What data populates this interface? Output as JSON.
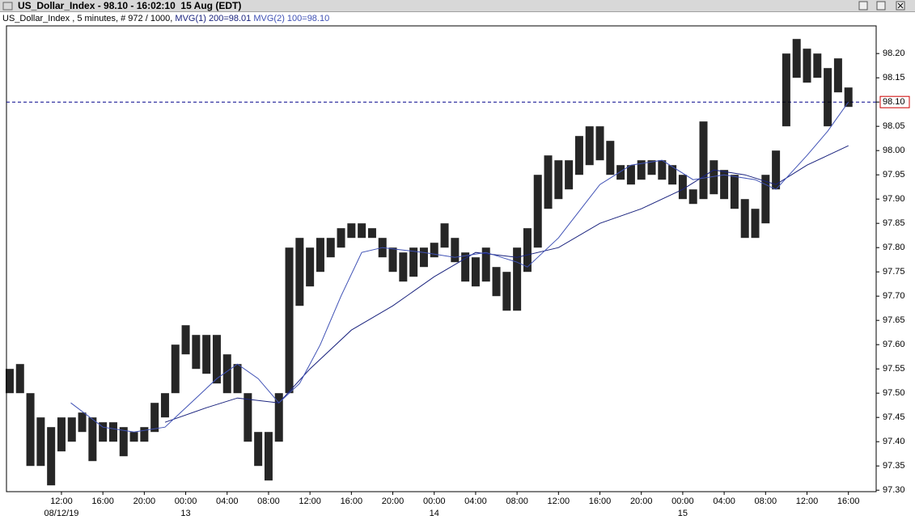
{
  "window_title": "US_Dollar_Index - 98.10 - 16:02:10  15 Aug (EDT)",
  "chart_data": {
    "type": "ohlc",
    "header": "US_Dollar_Index , 5 minutes, # 972 / 1000,",
    "xlim": [
      6.69,
      90.68
    ],
    "ylim": [
      97.297,
      98.257
    ],
    "xticks": [
      {
        "value": 12,
        "label": "12:00"
      },
      {
        "value": 16,
        "label": "16:00"
      },
      {
        "value": 20,
        "label": "20:00"
      },
      {
        "value": 24,
        "label": "00:00"
      },
      {
        "value": 28,
        "label": "04:00"
      },
      {
        "value": 32,
        "label": "08:00"
      },
      {
        "value": 36,
        "label": "12:00"
      },
      {
        "value": 40,
        "label": "16:00"
      },
      {
        "value": 44,
        "label": "20:00"
      },
      {
        "value": 48,
        "label": "00:00"
      },
      {
        "value": 52,
        "label": "04:00"
      },
      {
        "value": 56,
        "label": "08:00"
      },
      {
        "value": 60,
        "label": "12:00"
      },
      {
        "value": 64,
        "label": "16:00"
      },
      {
        "value": 68,
        "label": "20:00"
      },
      {
        "value": 72,
        "label": "00:00"
      },
      {
        "value": 76,
        "label": "04:00"
      },
      {
        "value": 80,
        "label": "08:00"
      },
      {
        "value": 84,
        "label": "12:00"
      },
      {
        "value": 88,
        "label": "16:00"
      }
    ],
    "date_labels": [
      {
        "value": 12,
        "label": "08/12/19"
      },
      {
        "value": 24,
        "label": "13"
      },
      {
        "value": 48,
        "label": "14"
      },
      {
        "value": 72,
        "label": "15"
      }
    ],
    "yticks": [
      {
        "value": 97.3,
        "label": "97.30"
      },
      {
        "value": 97.35,
        "label": "97.35"
      },
      {
        "value": 97.4,
        "label": "97.40"
      },
      {
        "value": 97.45,
        "label": "97.45"
      },
      {
        "value": 97.5,
        "label": "97.50"
      },
      {
        "value": 97.55,
        "label": "97.55"
      },
      {
        "value": 97.6,
        "label": "97.60"
      },
      {
        "value": 97.65,
        "label": "97.65"
      },
      {
        "value": 97.7,
        "label": "97.70"
      },
      {
        "value": 97.75,
        "label": "97.75"
      },
      {
        "value": 97.8,
        "label": "97.80"
      },
      {
        "value": 97.85,
        "label": "97.85"
      },
      {
        "value": 97.9,
        "label": "97.90"
      },
      {
        "value": 97.95,
        "label": "97.95"
      },
      {
        "value": 98,
        "label": "98.00"
      },
      {
        "value": 98.05,
        "label": "98.05"
      },
      {
        "value": 98.1,
        "label": "98.10"
      },
      {
        "value": 98.15,
        "label": "98.15"
      },
      {
        "value": 98.2,
        "label": "98.20"
      }
    ],
    "price_line": {
      "value": 98.1,
      "label": "98.10",
      "color": "#00008b",
      "label_color": "#cc0000"
    },
    "price": {
      "color": "#000000",
      "x": [
        7,
        8,
        9,
        10,
        11,
        12,
        13,
        14,
        15,
        16,
        17,
        18,
        19,
        20,
        21,
        22,
        23,
        24,
        25,
        26,
        27,
        28,
        29,
        30,
        31,
        32,
        33,
        34,
        35,
        36,
        37,
        38,
        39,
        40,
        41,
        42,
        43,
        44,
        45,
        46,
        47,
        48,
        49,
        50,
        51,
        52,
        53,
        54,
        55,
        56,
        57,
        58,
        59,
        60,
        61,
        62,
        63,
        64,
        65,
        66,
        67,
        68,
        69,
        70,
        71,
        72,
        73,
        74,
        75,
        76,
        77,
        78,
        79,
        80,
        81,
        82,
        83,
        84,
        85,
        86,
        87,
        88
      ],
      "high": [
        97.55,
        97.56,
        97.5,
        97.45,
        97.43,
        97.45,
        97.45,
        97.46,
        97.45,
        97.44,
        97.44,
        97.43,
        97.42,
        97.43,
        97.48,
        97.5,
        97.6,
        97.64,
        97.62,
        97.62,
        97.62,
        97.58,
        97.56,
        97.5,
        97.42,
        97.42,
        97.5,
        97.8,
        97.82,
        97.8,
        97.82,
        97.82,
        97.84,
        97.85,
        97.85,
        97.84,
        97.82,
        97.8,
        97.79,
        97.8,
        97.8,
        97.81,
        97.85,
        97.82,
        97.79,
        97.78,
        97.8,
        97.76,
        97.75,
        97.8,
        97.84,
        97.95,
        97.99,
        97.98,
        97.98,
        98.03,
        98.05,
        98.05,
        98.02,
        97.97,
        97.97,
        97.98,
        97.98,
        97.98,
        97.97,
        97.95,
        97.92,
        98.06,
        97.98,
        97.96,
        97.95,
        97.9,
        97.88,
        97.95,
        98,
        98.2,
        98.23,
        98.21,
        98.2,
        98.17,
        98.19,
        98.13
      ],
      "low": [
        97.5,
        97.5,
        97.35,
        97.35,
        97.31,
        97.38,
        97.4,
        97.42,
        97.36,
        97.4,
        97.4,
        97.37,
        97.4,
        97.4,
        97.42,
        97.45,
        97.5,
        97.58,
        97.55,
        97.54,
        97.52,
        97.5,
        97.5,
        97.4,
        97.35,
        97.32,
        97.4,
        97.5,
        97.68,
        97.72,
        97.75,
        97.78,
        97.8,
        97.82,
        97.82,
        97.82,
        97.78,
        97.75,
        97.73,
        97.74,
        97.76,
        97.78,
        97.8,
        97.77,
        97.73,
        97.72,
        97.73,
        97.7,
        97.67,
        97.67,
        97.75,
        97.8,
        97.88,
        97.9,
        97.92,
        97.95,
        97.97,
        97.98,
        97.95,
        97.94,
        97.93,
        97.94,
        97.95,
        97.94,
        97.93,
        97.9,
        97.89,
        97.9,
        97.91,
        97.9,
        97.88,
        97.82,
        97.82,
        97.85,
        97.92,
        98.05,
        98.15,
        98.14,
        98.15,
        98.05,
        98.12,
        98.09
      ]
    },
    "series": [
      {
        "name": "MVG(1) 200=98.01",
        "color": "#1a237e",
        "x": [
          22,
          26,
          29,
          33,
          36,
          40,
          44,
          48,
          52,
          56,
          60,
          64,
          68,
          72,
          75,
          78,
          81,
          84,
          86,
          88
        ],
        "values": [
          97.44,
          97.47,
          97.49,
          97.48,
          97.55,
          97.63,
          97.68,
          97.74,
          97.79,
          97.78,
          97.8,
          97.85,
          97.88,
          97.92,
          97.96,
          97.95,
          97.93,
          97.97,
          97.99,
          98.01
        ]
      },
      {
        "name": "MVG(2) 100=98.10",
        "color": "#3f51b5",
        "x": [
          12.9,
          16,
          19,
          22,
          24,
          27,
          29,
          31,
          33,
          35,
          37,
          39,
          41,
          43,
          47,
          50,
          53,
          56,
          57,
          60,
          64,
          67,
          70,
          73,
          76,
          79,
          81,
          84,
          86,
          88
        ],
        "values": [
          97.48,
          97.43,
          97.42,
          97.43,
          97.47,
          97.53,
          97.56,
          97.53,
          97.48,
          97.52,
          97.6,
          97.7,
          97.79,
          97.8,
          97.79,
          97.78,
          97.79,
          97.77,
          97.76,
          97.82,
          97.93,
          97.97,
          97.98,
          97.94,
          97.95,
          97.94,
          97.92,
          97.99,
          98.04,
          98.1
        ]
      }
    ]
  }
}
